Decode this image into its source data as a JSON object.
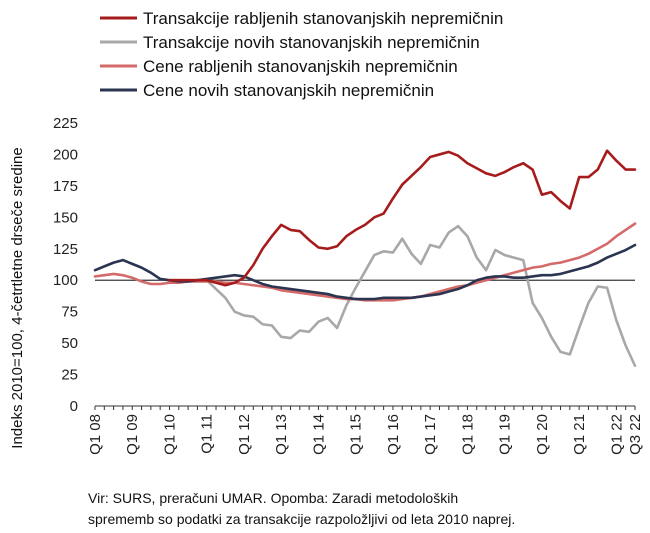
{
  "chart_data": {
    "type": "line",
    "title": "",
    "ylabel": "Indeks 2010=100, 4-četrtletne drseče sredine",
    "xlabel": "",
    "ylim": [
      0,
      225
    ],
    "yticks": [
      0,
      25,
      50,
      75,
      100,
      125,
      150,
      175,
      200,
      225
    ],
    "x": [
      "Q1 08",
      "Q2 08",
      "Q3 08",
      "Q4 08",
      "Q1 09",
      "Q2 09",
      "Q3 09",
      "Q4 09",
      "Q1 10",
      "Q2 10",
      "Q3 10",
      "Q4 10",
      "Q1 11",
      "Q2 11",
      "Q3 11",
      "Q4 11",
      "Q1 12",
      "Q2 12",
      "Q3 12",
      "Q4 12",
      "Q1 13",
      "Q2 13",
      "Q3 13",
      "Q4 13",
      "Q1 14",
      "Q2 14",
      "Q3 14",
      "Q4 14",
      "Q1 15",
      "Q2 15",
      "Q3 15",
      "Q4 15",
      "Q1 16",
      "Q2 16",
      "Q3 16",
      "Q4 16",
      "Q1 17",
      "Q2 17",
      "Q3 17",
      "Q4 17",
      "Q1 18",
      "Q2 18",
      "Q3 18",
      "Q4 18",
      "Q1 19",
      "Q2 19",
      "Q3 19",
      "Q4 19",
      "Q1 20",
      "Q2 20",
      "Q3 20",
      "Q4 20",
      "Q1 21",
      "Q2 21",
      "Q3 21",
      "Q4 21",
      "Q1 22",
      "Q2 22",
      "Q3 22"
    ],
    "x_tick_labels": [
      "Q1 08",
      "Q1 09",
      "Q1 10",
      "Q1 11",
      "Q1 12",
      "Q1 13",
      "Q1 14",
      "Q1 15",
      "Q1 16",
      "Q1 17",
      "Q1 18",
      "Q1 19",
      "Q1 20",
      "Q1 21",
      "Q1 22",
      "Q3 22"
    ],
    "reference_line": 100,
    "grid": false,
    "legend_position": "top",
    "series": [
      {
        "name": "Transakcije rabljenih stanovanjskih nepremičnin",
        "color": "#a61c1c",
        "values": [
          null,
          null,
          null,
          null,
          null,
          null,
          null,
          null,
          100,
          100,
          100,
          100,
          100,
          98,
          96,
          98,
          102,
          112,
          125,
          135,
          144,
          140,
          139,
          132,
          126,
          125,
          127,
          135,
          140,
          144,
          150,
          153,
          165,
          176,
          183,
          190,
          198,
          200,
          202,
          199,
          193,
          189,
          185,
          183,
          186,
          190,
          193,
          188,
          168,
          170,
          163,
          157,
          182,
          182,
          188,
          203,
          195,
          188,
          188
        ]
      },
      {
        "name": "Transakcije novih stanovanjskih nepremičnin",
        "color": "#a8a8a8",
        "values": [
          null,
          null,
          null,
          null,
          null,
          null,
          null,
          null,
          100,
          100,
          100,
          100,
          100,
          93,
          86,
          75,
          72,
          71,
          65,
          64,
          55,
          54,
          60,
          59,
          67,
          70,
          62,
          80,
          94,
          107,
          120,
          123,
          122,
          133,
          121,
          113,
          128,
          126,
          138,
          143,
          135,
          118,
          108,
          124,
          120,
          118,
          116,
          82,
          70,
          55,
          43,
          41,
          62,
          82,
          95,
          94,
          68,
          48,
          32
        ]
      },
      {
        "name": "Cene rabljenih stanovanjskih nepremičnin",
        "color": "#d46a6a",
        "values": [
          103,
          104,
          105,
          104,
          102,
          99,
          97,
          97,
          98,
          98,
          99,
          99,
          99,
          99,
          98,
          98,
          97,
          96,
          95,
          94,
          92,
          91,
          90,
          89,
          88,
          87,
          86,
          85,
          85,
          84,
          84,
          84,
          84,
          85,
          86,
          87,
          89,
          91,
          93,
          95,
          96,
          98,
          100,
          102,
          104,
          106,
          108,
          110,
          111,
          113,
          114,
          116,
          118,
          121,
          125,
          129,
          135,
          140,
          145
        ]
      },
      {
        "name": "Cene novih stanovanjskih nepremičnin",
        "color": "#2b3450",
        "values": [
          108,
          111,
          114,
          116,
          113,
          110,
          106,
          101,
          100,
          99,
          99,
          100,
          101,
          102,
          103,
          104,
          103,
          100,
          97,
          95,
          94,
          93,
          92,
          91,
          90,
          89,
          87,
          86,
          85,
          85,
          85,
          86,
          86,
          86,
          86,
          87,
          88,
          89,
          91,
          93,
          96,
          100,
          102,
          103,
          103,
          102,
          102,
          103,
          104,
          104,
          105,
          107,
          109,
          111,
          114,
          118,
          121,
          124,
          128
        ]
      }
    ],
    "source_note": [
      "Vir: SURS, preračuni UMAR. Opomba: Zaradi metodoloških",
      "sprememb so podatki za transakcije razpoložljivi od leta 2010 naprej."
    ]
  }
}
